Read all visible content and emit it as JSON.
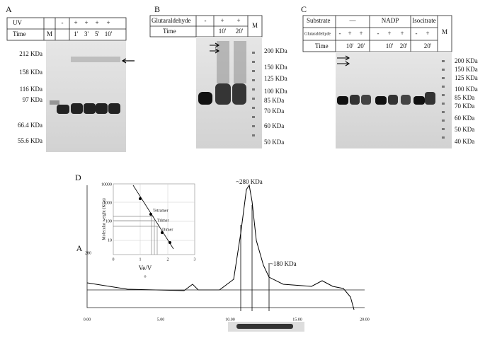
{
  "panel_a": {
    "label": "A",
    "row1": [
      "UV",
      "-",
      "+",
      "+",
      "+",
      "+"
    ],
    "row2": [
      "Time",
      "M",
      "1'",
      "3'",
      "5'",
      "10'"
    ],
    "markers": [
      "212 KDa",
      "158 KDa",
      "116 KDa",
      "97 KDa",
      "66.4 KDa",
      "55.6 KDa"
    ]
  },
  "panel_b": {
    "label": "B",
    "row1": [
      "Glutaraldehyde",
      "-",
      "+",
      "+"
    ],
    "row2": [
      "Time",
      "10'",
      "20'"
    ],
    "lane_m": "M",
    "markers": [
      "200 KDa",
      "150 KDa",
      "125 KDa",
      "100 KDa",
      "85 KDa",
      "70 KDa",
      "60 KDa",
      "50 KDa"
    ]
  },
  "panel_c": {
    "label": "C",
    "row1": [
      "Substrate",
      "—",
      "NADP",
      "Isocitrate"
    ],
    "lane_m": "M",
    "row2": [
      "Glutaraldehyde",
      "-",
      "+",
      "+",
      "-",
      "+",
      "+",
      "-",
      "+"
    ],
    "row3": [
      "Time",
      "10'",
      "20'",
      "10'",
      "20'",
      "20'"
    ],
    "markers": [
      "200 KDa",
      "150 KDa",
      "125 KDa",
      "100 KDa",
      "85 KDa",
      "70 KDa",
      "60 KDa",
      "50 KDa",
      "40 KDa"
    ]
  },
  "panel_d": {
    "label": "D",
    "y_label": "A",
    "y_label_sub": "280",
    "peak_1": "~280 KDa",
    "peak_2": "~180 KDa",
    "x_ticks": [
      "0.00",
      "5.00",
      "10.00",
      "15.00",
      "20.00"
    ],
    "inset": {
      "y_label": "Molecular weight (KDa)",
      "y_ticks": [
        "10000",
        "1000",
        "100",
        "10"
      ],
      "x_ticks": [
        "0",
        "1",
        "2",
        "3"
      ],
      "x_label": "Ve/V",
      "x_label_sub": "o",
      "points": [
        "Tetramer",
        "Trimer",
        "Dimer"
      ]
    }
  }
}
